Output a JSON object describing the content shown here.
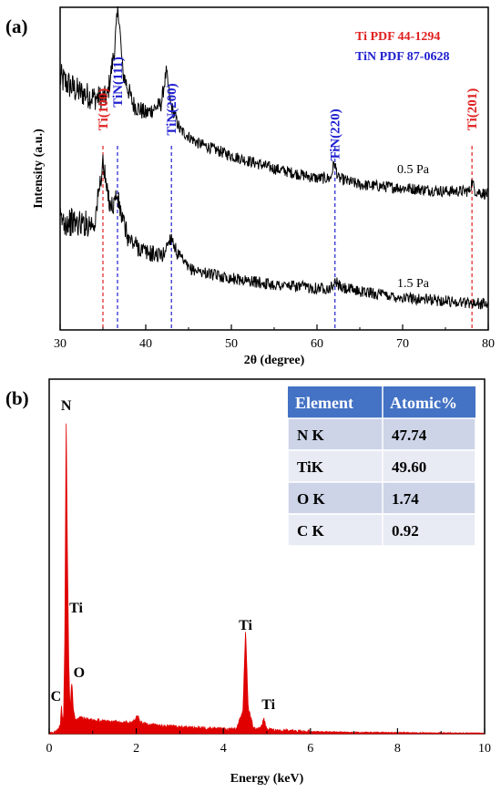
{
  "chart_data": [
    {
      "panel": "(a)",
      "type": "line",
      "xlabel": "2θ (degree)",
      "ylabel": "Intensity (a.u.)",
      "xlim": [
        30,
        80
      ],
      "xticks": [
        "30",
        "40",
        "50",
        "60",
        "70",
        "80"
      ],
      "legend": [
        {
          "text": "Ti    PDF 44-1294",
          "color": "#e02020"
        },
        {
          "text": "TiN PDF 87-0628",
          "color": "#2020d0"
        }
      ],
      "reference_peaks": [
        {
          "label": "Ti(100)",
          "x": 35.0,
          "color": "#e02020"
        },
        {
          "label": "TiN(111)",
          "x": 36.7,
          "color": "#2020d0"
        },
        {
          "label": "TiN(200)",
          "x": 43.0,
          "color": "#2020d0"
        },
        {
          "label": "TiN(220)",
          "x": 62.1,
          "color": "#2020d0"
        },
        {
          "label": "Ti(201)",
          "x": 78.1,
          "color": "#e02020"
        }
      ],
      "series": [
        {
          "name": "0.5 Pa",
          "x": [
            30,
            32,
            34,
            35.5,
            36.3,
            36.8,
            37.3,
            38.5,
            40,
            41.8,
            42.4,
            42.9,
            44,
            46,
            50,
            55,
            60,
            61.6,
            62.0,
            62.5,
            65,
            70,
            75,
            77.8,
            78.1,
            78.5,
            80
          ],
          "y": [
            0.78,
            0.74,
            0.72,
            0.72,
            0.86,
            1.0,
            0.8,
            0.7,
            0.67,
            0.7,
            0.8,
            0.7,
            0.62,
            0.58,
            0.54,
            0.5,
            0.47,
            0.47,
            0.52,
            0.47,
            0.45,
            0.44,
            0.43,
            0.43,
            0.46,
            0.43,
            0.42
          ]
        },
        {
          "name": "1.5 Pa",
          "x": [
            30,
            32,
            34,
            34.5,
            35.0,
            35.5,
            36.1,
            36.6,
            37.2,
            38,
            40,
            42,
            42.6,
            43.0,
            43.6,
            45,
            48,
            50,
            55,
            60,
            61.6,
            62.2,
            62.8,
            65,
            70,
            75,
            80
          ],
          "y": [
            0.34,
            0.33,
            0.33,
            0.42,
            0.52,
            0.42,
            0.38,
            0.42,
            0.35,
            0.28,
            0.24,
            0.23,
            0.27,
            0.29,
            0.24,
            0.19,
            0.17,
            0.16,
            0.14,
            0.13,
            0.13,
            0.15,
            0.13,
            0.12,
            0.1,
            0.09,
            0.08
          ]
        }
      ]
    },
    {
      "panel": "(b)",
      "type": "area",
      "xlabel": "Energy (keV)",
      "xlim": [
        0,
        10
      ],
      "xticks": [
        "0",
        "2",
        "4",
        "6",
        "8",
        "10"
      ],
      "color": "#e00000",
      "spectrum": {
        "x": [
          0,
          0.1,
          0.2,
          0.26,
          0.28,
          0.3,
          0.33,
          0.36,
          0.39,
          0.42,
          0.45,
          0.48,
          0.52,
          0.55,
          0.6,
          0.7,
          0.9,
          1.2,
          1.6,
          1.9,
          2.0,
          2.04,
          2.1,
          2.2,
          2.5,
          3.0,
          3.5,
          4.0,
          4.3,
          4.45,
          4.51,
          4.57,
          4.7,
          4.85,
          4.93,
          5.0,
          5.2,
          5.6,
          6.0,
          7.0,
          8.0,
          9.0,
          10.0
        ],
        "y": [
          0.0,
          0.0,
          0.01,
          0.03,
          0.09,
          0.05,
          0.04,
          0.3,
          1.0,
          0.55,
          0.22,
          0.07,
          0.17,
          0.08,
          0.04,
          0.05,
          0.045,
          0.04,
          0.035,
          0.035,
          0.05,
          0.055,
          0.035,
          0.03,
          0.025,
          0.02,
          0.017,
          0.014,
          0.013,
          0.07,
          0.33,
          0.08,
          0.015,
          0.015,
          0.045,
          0.015,
          0.01,
          0.007,
          0.006,
          0.004,
          0.003,
          0.002,
          0.001
        ]
      },
      "peak_labels": [
        {
          "text": "N",
          "x": 0.39
        },
        {
          "text": "Ti",
          "x": 0.45
        },
        {
          "text": "O",
          "x": 0.52
        },
        {
          "text": "C",
          "x": 0.28
        },
        {
          "text": "Ti",
          "x": 4.51
        },
        {
          "text": "Ti",
          "x": 4.93
        }
      ],
      "table": {
        "headers": [
          "Element",
          "Atomic%"
        ],
        "rows": [
          [
            "N K",
            "47.74"
          ],
          [
            "TiK",
            "49.60"
          ],
          [
            "O K",
            "1.74"
          ],
          [
            "C K",
            "0.92"
          ]
        ],
        "header_color": "#4472c4",
        "row_colors": [
          "#cdd4e8",
          "#e8ebf4"
        ]
      }
    }
  ]
}
